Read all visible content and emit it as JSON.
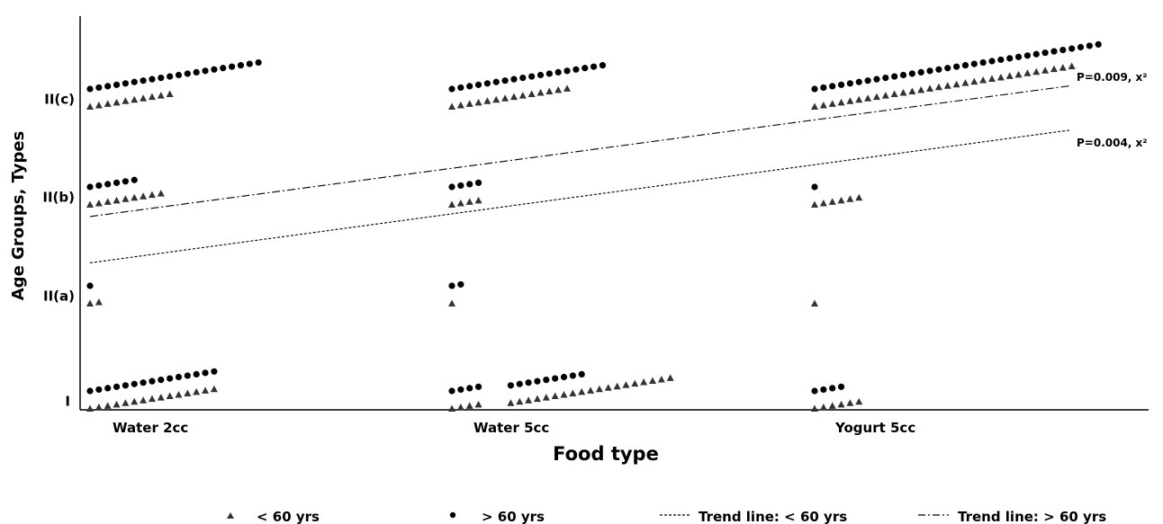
{
  "chart_data": {
    "type": "scatter",
    "title": "",
    "xlabel": "Food type",
    "ylabel": "Age Groups, Types",
    "categories": [
      "Water 2cc",
      "Water 5cc",
      "Yogurt 5cc"
    ],
    "y_levels": [
      "I",
      "II(a)",
      "II(b)",
      "II(c)"
    ],
    "grid": false,
    "legend_position": "bottom",
    "series": [
      {
        "name": "< 60 yrs",
        "marker": "triangle",
        "counts": [
          [
            15,
            2,
            9,
            10
          ],
          [
            23,
            1,
            4,
            14
          ],
          [
            6,
            1,
            6,
            30
          ]
        ]
      },
      {
        "name": "> 60 yrs",
        "marker": "circle",
        "counts": [
          [
            15,
            1,
            6,
            20
          ],
          [
            13,
            2,
            4,
            18
          ],
          [
            4,
            0,
            1,
            33
          ]
        ]
      }
    ],
    "trend_lines": [
      {
        "name": "Trend line: < 60 yrs",
        "style": "dashed",
        "start_level": 1.38,
        "end_level": 2.7,
        "annotation": "P=0.004, x²"
      },
      {
        "name": "Trend line: > 60 yrs",
        "style": "dashdot",
        "start_level": 1.84,
        "end_level": 3.14,
        "annotation": "P=0.009, x²"
      }
    ]
  },
  "colors": {
    "points": "#000000",
    "triangles": "#333333",
    "lines": "#000000"
  }
}
